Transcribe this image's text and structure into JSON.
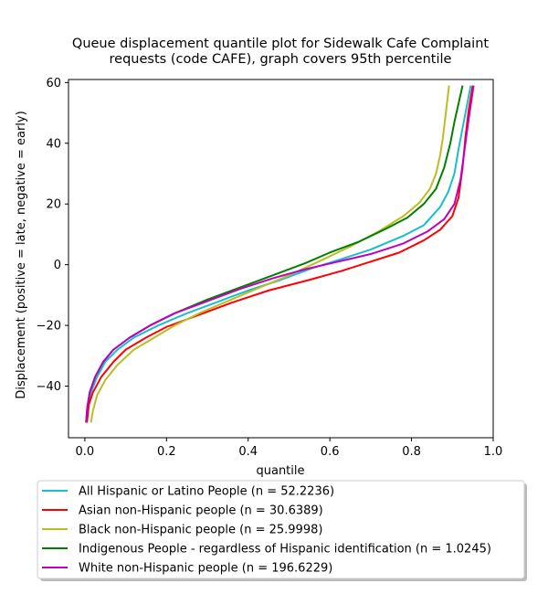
{
  "chart_data": {
    "type": "line",
    "title_lines": [
      "Queue displacement quantile plot for Sidewalk Cafe Complaint",
      "requests (code CAFE), graph covers 95th percentile"
    ],
    "xlabel": "quantile",
    "ylabel": "Displacement (positive = late, negative = early)",
    "xlim": [
      -0.04,
      1.0
    ],
    "ylim": [
      -57,
      61
    ],
    "xticks": [
      0.0,
      0.2,
      0.4,
      0.6,
      0.8,
      1.0
    ],
    "xtick_labels": [
      "0.0",
      "0.2",
      "0.4",
      "0.6",
      "0.8",
      "1.0"
    ],
    "yticks": [
      -40,
      -20,
      0,
      20,
      40,
      60
    ],
    "ytick_labels": [
      "−40",
      "−20",
      "0",
      "20",
      "40",
      "60"
    ],
    "grid": false,
    "legend_position": "below-plot",
    "series": [
      {
        "name": "All Hispanic or Latino People (n = 52.2236)",
        "color": "#17becf",
        "points": [
          [
            0.005,
            -52
          ],
          [
            0.008,
            -47
          ],
          [
            0.015,
            -42
          ],
          [
            0.03,
            -37
          ],
          [
            0.05,
            -32
          ],
          [
            0.08,
            -28
          ],
          [
            0.12,
            -24
          ],
          [
            0.18,
            -20
          ],
          [
            0.25,
            -16
          ],
          [
            0.32,
            -12.5
          ],
          [
            0.4,
            -8.5
          ],
          [
            0.48,
            -5
          ],
          [
            0.56,
            -1
          ],
          [
            0.62,
            1.5
          ],
          [
            0.7,
            5
          ],
          [
            0.78,
            9.5
          ],
          [
            0.83,
            13
          ],
          [
            0.87,
            19
          ],
          [
            0.89,
            24
          ],
          [
            0.905,
            30
          ],
          [
            0.915,
            38
          ],
          [
            0.925,
            45
          ],
          [
            0.935,
            52
          ],
          [
            0.945,
            59
          ]
        ]
      },
      {
        "name": "Asian non-Hispanic people (n = 30.6389)",
        "color": "#ff0000",
        "points": [
          [
            0.005,
            -52
          ],
          [
            0.01,
            -46
          ],
          [
            0.02,
            -42
          ],
          [
            0.04,
            -37
          ],
          [
            0.07,
            -32
          ],
          [
            0.1,
            -28
          ],
          [
            0.15,
            -24
          ],
          [
            0.2,
            -20.5
          ],
          [
            0.28,
            -16.5
          ],
          [
            0.36,
            -12.5
          ],
          [
            0.45,
            -8.5
          ],
          [
            0.55,
            -5
          ],
          [
            0.63,
            -2
          ],
          [
            0.7,
            1
          ],
          [
            0.77,
            4
          ],
          [
            0.83,
            8
          ],
          [
            0.87,
            11.5
          ],
          [
            0.9,
            16
          ],
          [
            0.915,
            22
          ],
          [
            0.925,
            32
          ],
          [
            0.932,
            42
          ],
          [
            0.94,
            51
          ],
          [
            0.95,
            59
          ]
        ]
      },
      {
        "name": "Black non-Hispanic people (n = 25.9998)",
        "color": "#bcbd22",
        "points": [
          [
            0.015,
            -52
          ],
          [
            0.02,
            -48
          ],
          [
            0.03,
            -43
          ],
          [
            0.05,
            -38
          ],
          [
            0.08,
            -33
          ],
          [
            0.12,
            -28
          ],
          [
            0.17,
            -24
          ],
          [
            0.22,
            -20
          ],
          [
            0.28,
            -16
          ],
          [
            0.35,
            -12
          ],
          [
            0.42,
            -8
          ],
          [
            0.5,
            -3.5
          ],
          [
            0.58,
            1.5
          ],
          [
            0.65,
            6
          ],
          [
            0.72,
            11
          ],
          [
            0.78,
            16
          ],
          [
            0.82,
            20.5
          ],
          [
            0.845,
            25
          ],
          [
            0.86,
            30
          ],
          [
            0.87,
            36
          ],
          [
            0.877,
            42
          ],
          [
            0.884,
            50
          ],
          [
            0.892,
            59
          ]
        ]
      },
      {
        "name": "Indigenous People - regardless of Hispanic identification (n = 1.0245)",
        "color": "#008000",
        "points": [
          [
            0.003,
            -52
          ],
          [
            0.006,
            -47
          ],
          [
            0.012,
            -42
          ],
          [
            0.025,
            -37
          ],
          [
            0.045,
            -32
          ],
          [
            0.07,
            -28
          ],
          [
            0.11,
            -24
          ],
          [
            0.16,
            -20
          ],
          [
            0.22,
            -16
          ],
          [
            0.3,
            -11.5
          ],
          [
            0.38,
            -7.5
          ],
          [
            0.46,
            -3.5
          ],
          [
            0.54,
            0.5
          ],
          [
            0.6,
            4
          ],
          [
            0.67,
            7.5
          ],
          [
            0.74,
            12
          ],
          [
            0.79,
            15.5
          ],
          [
            0.83,
            20
          ],
          [
            0.86,
            25
          ],
          [
            0.88,
            32
          ],
          [
            0.895,
            40
          ],
          [
            0.905,
            47
          ],
          [
            0.915,
            53
          ],
          [
            0.925,
            59
          ]
        ]
      },
      {
        "name": "White non-Hispanic people (n = 196.6229)",
        "color": "#bf00bf",
        "points": [
          [
            0.003,
            -52
          ],
          [
            0.006,
            -47
          ],
          [
            0.012,
            -42
          ],
          [
            0.025,
            -37
          ],
          [
            0.045,
            -32
          ],
          [
            0.07,
            -28
          ],
          [
            0.11,
            -24
          ],
          [
            0.16,
            -20
          ],
          [
            0.22,
            -16
          ],
          [
            0.3,
            -12
          ],
          [
            0.38,
            -8
          ],
          [
            0.46,
            -4.5
          ],
          [
            0.54,
            -1.5
          ],
          [
            0.62,
            1
          ],
          [
            0.7,
            3.5
          ],
          [
            0.78,
            7
          ],
          [
            0.84,
            11
          ],
          [
            0.88,
            15
          ],
          [
            0.905,
            20
          ],
          [
            0.92,
            28
          ],
          [
            0.93,
            38
          ],
          [
            0.94,
            48
          ],
          [
            0.952,
            59
          ]
        ]
      }
    ]
  }
}
